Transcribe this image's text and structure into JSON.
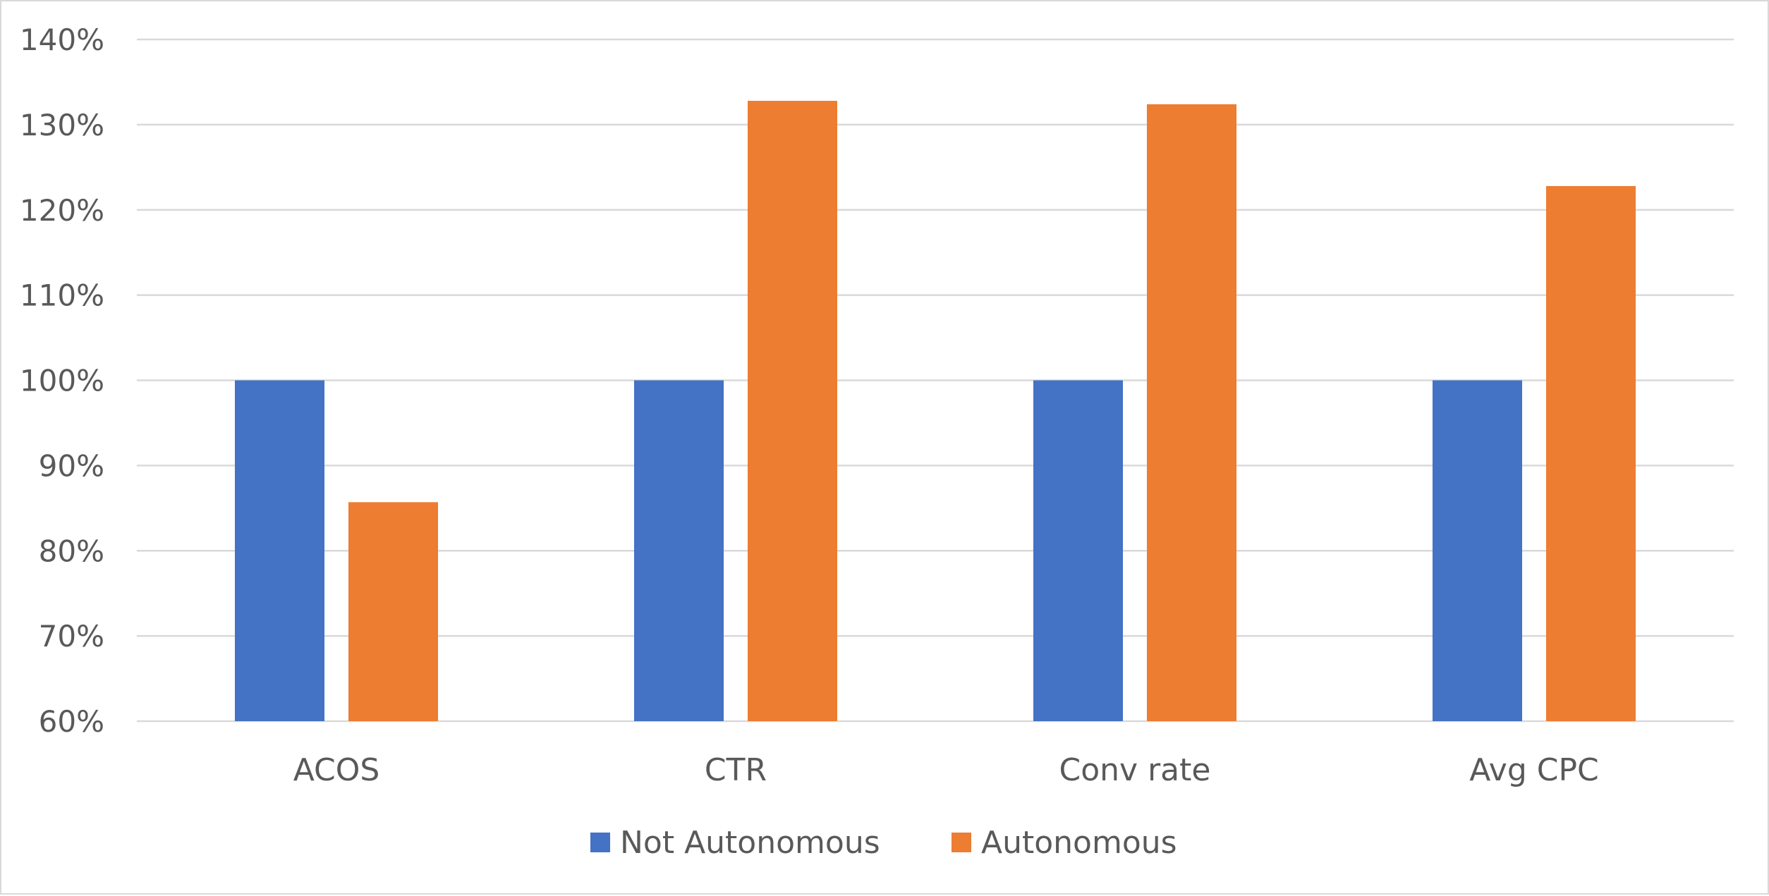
{
  "chart_data": {
    "type": "bar",
    "categories": [
      "ACOS",
      "CTR",
      "Conv rate",
      "Avg CPC"
    ],
    "series": [
      {
        "name": "Not Autonomous",
        "color": "#4472c4",
        "values": [
          100,
          100,
          100,
          100
        ]
      },
      {
        "name": "Autonomous",
        "color": "#ed7d31",
        "values": [
          85.7,
          132.8,
          132.4,
          122.8
        ]
      }
    ],
    "y_ticks": [
      "60%",
      "70%",
      "80%",
      "90%",
      "100%",
      "110%",
      "120%",
      "130%",
      "140%"
    ],
    "ylim": [
      60,
      140
    ],
    "y_unit": "%",
    "grid": true,
    "grid_color": "#d9d9d9",
    "legend_position": "bottom",
    "title": "",
    "xlabel": "",
    "ylabel": ""
  }
}
